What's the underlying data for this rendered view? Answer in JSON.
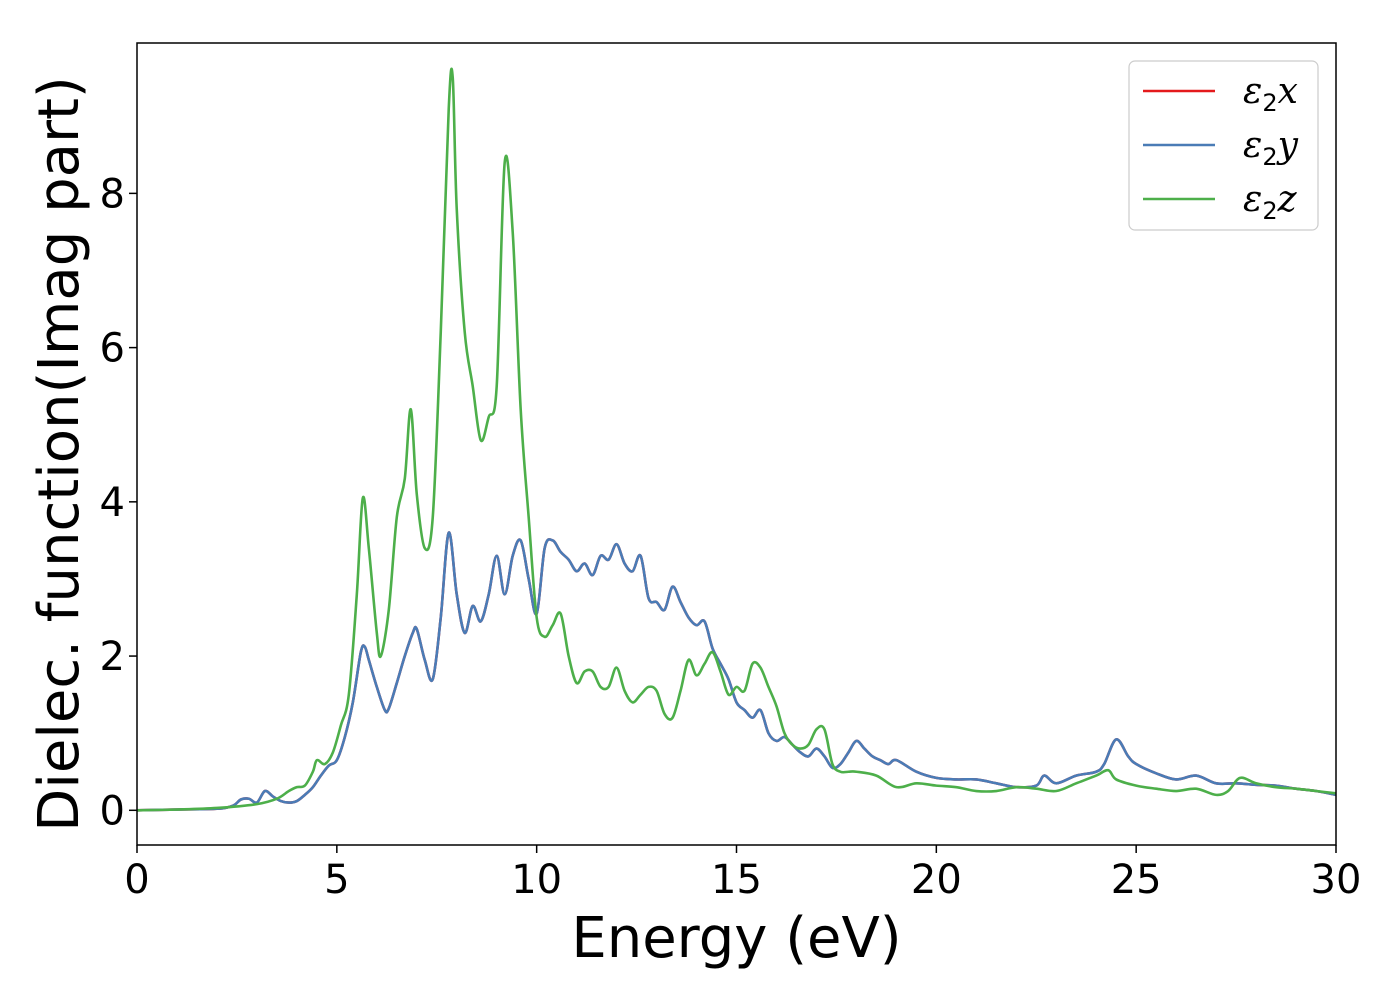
{
  "chart_data": {
    "type": "line",
    "xlabel": "Energy (eV)",
    "ylabel": "Dielec. function(Imag part)",
    "xlim": [
      0,
      30
    ],
    "ylim": [
      -0.45,
      9.95
    ],
    "xticks": [
      0,
      5,
      10,
      15,
      20,
      25,
      30
    ],
    "yticks": [
      0,
      2,
      4,
      6,
      8
    ],
    "grid": false,
    "legend_position": "top-right",
    "series": [
      {
        "name": "ε₂x",
        "legend_base": "ε",
        "legend_sub": "2",
        "legend_suffix": "x",
        "color": "#e41a1c",
        "x": [
          0,
          1,
          2,
          2.4,
          2.6,
          2.8,
          3.0,
          3.2,
          3.4,
          3.6,
          3.8,
          4.0,
          4.2,
          4.4,
          4.6,
          4.8,
          5.0,
          5.2,
          5.4,
          5.6,
          5.7,
          5.8,
          6.0,
          6.2,
          6.3,
          6.5,
          6.7,
          6.9,
          7.0,
          7.2,
          7.4,
          7.6,
          7.8,
          8.0,
          8.2,
          8.4,
          8.6,
          8.8,
          9.0,
          9.2,
          9.4,
          9.6,
          9.8,
          10.0,
          10.2,
          10.4,
          10.6,
          10.8,
          11.0,
          11.2,
          11.4,
          11.6,
          11.8,
          12.0,
          12.2,
          12.4,
          12.6,
          12.8,
          13.0,
          13.2,
          13.4,
          13.6,
          13.8,
          14.0,
          14.2,
          14.4,
          14.6,
          14.8,
          15.0,
          15.2,
          15.4,
          15.6,
          15.8,
          16.0,
          16.2,
          16.4,
          16.6,
          16.8,
          17.0,
          17.2,
          17.4,
          17.6,
          17.8,
          18.0,
          18.2,
          18.4,
          18.6,
          18.8,
          19.0,
          19.5,
          20.0,
          20.5,
          21.0,
          21.5,
          22.0,
          22.5,
          22.7,
          23.0,
          23.5,
          24.0,
          24.2,
          24.5,
          24.8,
          25.0,
          25.5,
          26.0,
          26.5,
          27.0,
          27.5,
          28.0,
          28.5,
          29.0,
          29.5,
          30.0
        ],
        "y": [
          0.0,
          0.01,
          0.02,
          0.06,
          0.14,
          0.15,
          0.1,
          0.25,
          0.18,
          0.12,
          0.1,
          0.12,
          0.2,
          0.3,
          0.45,
          0.58,
          0.65,
          0.95,
          1.4,
          2.05,
          2.12,
          1.95,
          1.6,
          1.3,
          1.32,
          1.65,
          2.0,
          2.3,
          2.35,
          1.95,
          1.7,
          2.5,
          3.6,
          2.8,
          2.3,
          2.65,
          2.45,
          2.8,
          3.3,
          2.8,
          3.3,
          3.5,
          3.0,
          2.55,
          3.4,
          3.5,
          3.35,
          3.25,
          3.1,
          3.2,
          3.05,
          3.3,
          3.25,
          3.45,
          3.2,
          3.1,
          3.3,
          2.75,
          2.7,
          2.6,
          2.9,
          2.7,
          2.5,
          2.4,
          2.45,
          2.1,
          1.9,
          1.7,
          1.4,
          1.3,
          1.2,
          1.3,
          1.0,
          0.9,
          0.95,
          0.85,
          0.75,
          0.7,
          0.8,
          0.7,
          0.55,
          0.6,
          0.75,
          0.9,
          0.8,
          0.7,
          0.65,
          0.6,
          0.65,
          0.5,
          0.42,
          0.4,
          0.4,
          0.35,
          0.3,
          0.32,
          0.45,
          0.35,
          0.45,
          0.5,
          0.6,
          0.92,
          0.7,
          0.6,
          0.48,
          0.4,
          0.45,
          0.35,
          0.35,
          0.33,
          0.32,
          0.28,
          0.25,
          0.2
        ]
      },
      {
        "name": "ε₂y",
        "legend_base": "ε",
        "legend_sub": "2",
        "legend_suffix": "y",
        "color": "#4a7cb6",
        "x": [
          0,
          1,
          2,
          2.4,
          2.6,
          2.8,
          3.0,
          3.2,
          3.4,
          3.6,
          3.8,
          4.0,
          4.2,
          4.4,
          4.6,
          4.8,
          5.0,
          5.2,
          5.4,
          5.6,
          5.7,
          5.8,
          6.0,
          6.2,
          6.3,
          6.5,
          6.7,
          6.9,
          7.0,
          7.2,
          7.4,
          7.6,
          7.8,
          8.0,
          8.2,
          8.4,
          8.6,
          8.8,
          9.0,
          9.2,
          9.4,
          9.6,
          9.8,
          10.0,
          10.2,
          10.4,
          10.6,
          10.8,
          11.0,
          11.2,
          11.4,
          11.6,
          11.8,
          12.0,
          12.2,
          12.4,
          12.6,
          12.8,
          13.0,
          13.2,
          13.4,
          13.6,
          13.8,
          14.0,
          14.2,
          14.4,
          14.6,
          14.8,
          15.0,
          15.2,
          15.4,
          15.6,
          15.8,
          16.0,
          16.2,
          16.4,
          16.6,
          16.8,
          17.0,
          17.2,
          17.4,
          17.6,
          17.8,
          18.0,
          18.2,
          18.4,
          18.6,
          18.8,
          19.0,
          19.5,
          20.0,
          20.5,
          21.0,
          21.5,
          22.0,
          22.5,
          22.7,
          23.0,
          23.5,
          24.0,
          24.2,
          24.5,
          24.8,
          25.0,
          25.5,
          26.0,
          26.5,
          27.0,
          27.5,
          28.0,
          28.5,
          29.0,
          29.5,
          30.0
        ],
        "y": [
          0.0,
          0.01,
          0.02,
          0.06,
          0.14,
          0.15,
          0.1,
          0.25,
          0.18,
          0.12,
          0.1,
          0.12,
          0.2,
          0.3,
          0.45,
          0.58,
          0.65,
          0.95,
          1.4,
          2.05,
          2.12,
          1.95,
          1.6,
          1.3,
          1.32,
          1.65,
          2.0,
          2.3,
          2.35,
          1.95,
          1.7,
          2.5,
          3.6,
          2.8,
          2.3,
          2.65,
          2.45,
          2.8,
          3.3,
          2.8,
          3.3,
          3.5,
          3.0,
          2.55,
          3.4,
          3.5,
          3.35,
          3.25,
          3.1,
          3.2,
          3.05,
          3.3,
          3.25,
          3.45,
          3.2,
          3.1,
          3.3,
          2.75,
          2.7,
          2.6,
          2.9,
          2.7,
          2.5,
          2.4,
          2.45,
          2.1,
          1.9,
          1.7,
          1.4,
          1.3,
          1.2,
          1.3,
          1.0,
          0.9,
          0.95,
          0.85,
          0.75,
          0.7,
          0.8,
          0.7,
          0.55,
          0.6,
          0.75,
          0.9,
          0.8,
          0.7,
          0.65,
          0.6,
          0.65,
          0.5,
          0.42,
          0.4,
          0.4,
          0.35,
          0.3,
          0.32,
          0.45,
          0.35,
          0.45,
          0.5,
          0.6,
          0.92,
          0.7,
          0.6,
          0.48,
          0.4,
          0.45,
          0.35,
          0.35,
          0.33,
          0.32,
          0.28,
          0.25,
          0.2
        ]
      },
      {
        "name": "ε₂z",
        "legend_base": "ε",
        "legend_sub": "2",
        "legend_suffix": "z",
        "color": "#4daf4a",
        "x": [
          0,
          1,
          2,
          3,
          3.5,
          3.8,
          4.0,
          4.2,
          4.4,
          4.5,
          4.7,
          4.9,
          5.1,
          5.3,
          5.5,
          5.65,
          5.8,
          6.0,
          6.1,
          6.3,
          6.5,
          6.7,
          6.85,
          7.0,
          7.2,
          7.4,
          7.6,
          7.8,
          7.9,
          8.0,
          8.2,
          8.4,
          8.6,
          8.8,
          9.0,
          9.2,
          9.4,
          9.6,
          9.8,
          10.0,
          10.2,
          10.4,
          10.6,
          10.8,
          11.0,
          11.2,
          11.4,
          11.6,
          11.8,
          12.0,
          12.2,
          12.4,
          12.6,
          12.8,
          13.0,
          13.2,
          13.4,
          13.6,
          13.8,
          14.0,
          14.2,
          14.4,
          14.6,
          14.8,
          15.0,
          15.2,
          15.4,
          15.6,
          15.8,
          16.0,
          16.2,
          16.4,
          16.6,
          16.8,
          17.0,
          17.2,
          17.4,
          17.6,
          17.8,
          18.0,
          18.5,
          19.0,
          19.5,
          20.0,
          20.5,
          21.0,
          21.5,
          22.0,
          22.5,
          23.0,
          23.5,
          24.0,
          24.3,
          24.5,
          25.0,
          25.5,
          26.0,
          26.5,
          27.0,
          27.3,
          27.6,
          28.0,
          28.5,
          29.0,
          29.5,
          30.0
        ],
        "y": [
          0.0,
          0.01,
          0.03,
          0.08,
          0.15,
          0.25,
          0.3,
          0.32,
          0.5,
          0.65,
          0.6,
          0.75,
          1.1,
          1.5,
          2.8,
          4.05,
          3.4,
          2.3,
          2.0,
          2.6,
          3.8,
          4.3,
          5.2,
          4.1,
          3.4,
          3.8,
          6.2,
          9.1,
          9.5,
          7.8,
          6.2,
          5.5,
          4.8,
          5.1,
          5.5,
          8.4,
          7.5,
          5.2,
          3.8,
          2.5,
          2.25,
          2.4,
          2.55,
          2.0,
          1.65,
          1.8,
          1.8,
          1.6,
          1.6,
          1.85,
          1.55,
          1.4,
          1.5,
          1.6,
          1.55,
          1.25,
          1.2,
          1.55,
          1.95,
          1.75,
          1.9,
          2.05,
          1.8,
          1.5,
          1.6,
          1.55,
          1.9,
          1.85,
          1.6,
          1.35,
          1.0,
          0.85,
          0.8,
          0.85,
          1.05,
          1.05,
          0.6,
          0.5,
          0.5,
          0.5,
          0.45,
          0.3,
          0.35,
          0.32,
          0.3,
          0.25,
          0.25,
          0.3,
          0.28,
          0.25,
          0.35,
          0.45,
          0.52,
          0.4,
          0.32,
          0.28,
          0.25,
          0.28,
          0.2,
          0.25,
          0.42,
          0.35,
          0.3,
          0.28,
          0.25,
          0.22
        ]
      }
    ]
  }
}
